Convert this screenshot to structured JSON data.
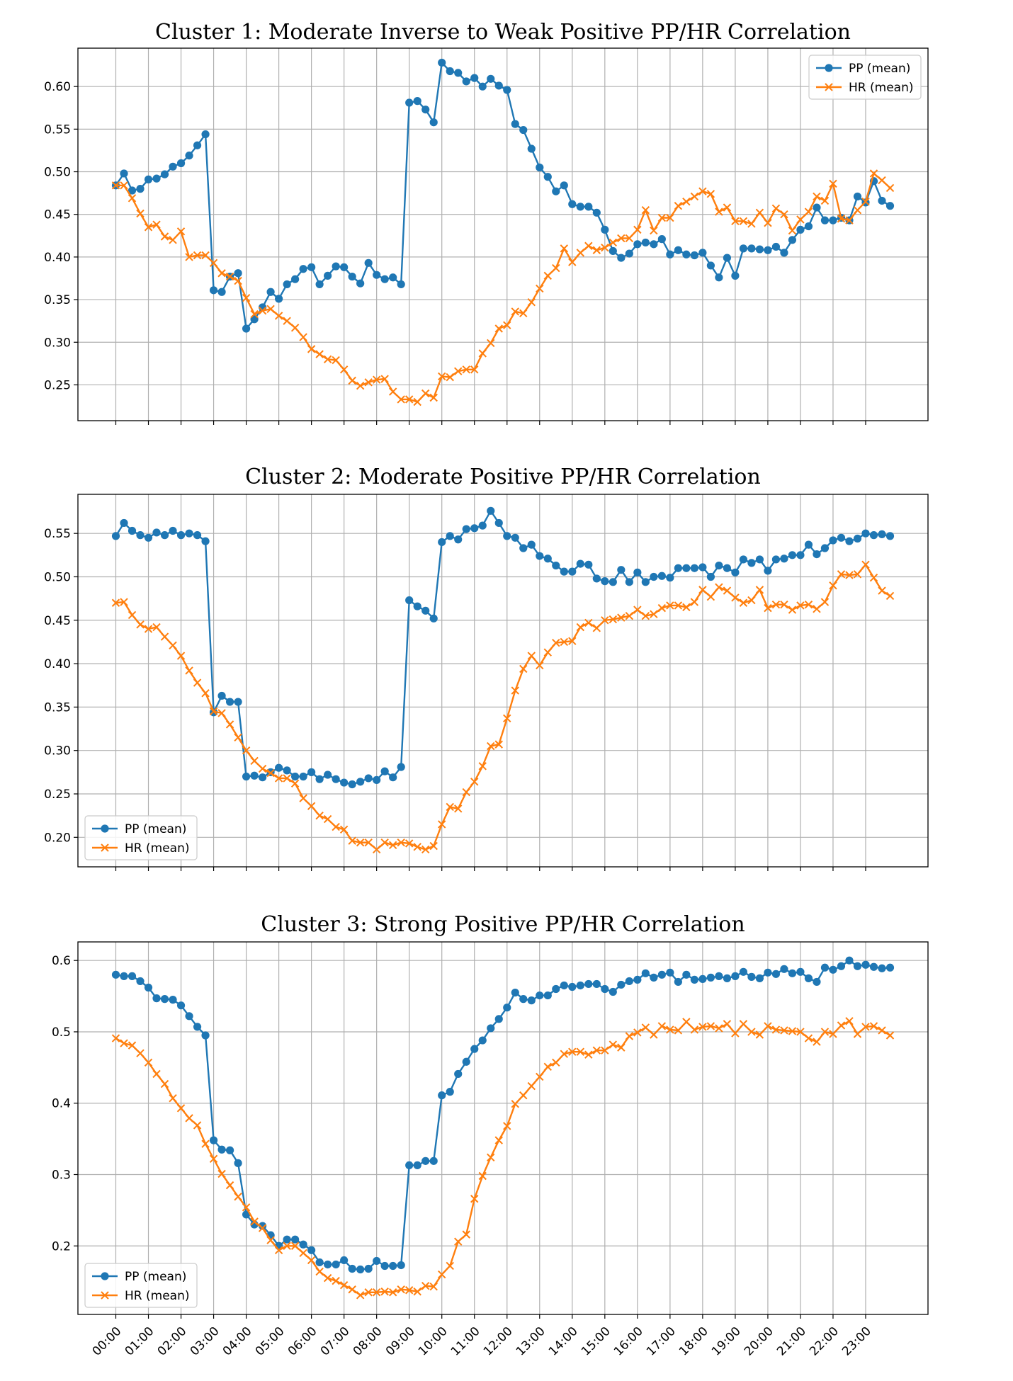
{
  "chart_data": [
    {
      "type": "line",
      "title": "Cluster 1: Moderate Inverse to Weak Positive PP/HR Correlation",
      "xlabel": "",
      "ylabel": "",
      "ylim": [
        0.208,
        0.645
      ],
      "yticks": [
        0.25,
        0.3,
        0.35,
        0.4,
        0.45,
        0.5,
        0.55,
        0.6
      ],
      "ytick_labels": [
        "0.25",
        "0.30",
        "0.35",
        "0.40",
        "0.45",
        "0.50",
        "0.55",
        "0.60"
      ],
      "legend_position": "top-right",
      "show_xtick_labels": false,
      "series": [
        {
          "name": "PP (mean)",
          "color": "#1f77b4",
          "marker": "circle",
          "values": [
            0.484,
            0.498,
            0.478,
            0.48,
            0.491,
            0.492,
            0.497,
            0.506,
            0.51,
            0.519,
            0.531,
            0.544,
            0.361,
            0.359,
            0.377,
            0.381,
            0.316,
            0.327,
            0.341,
            0.359,
            0.351,
            0.368,
            0.374,
            0.386,
            0.388,
            0.368,
            0.378,
            0.389,
            0.388,
            0.377,
            0.369,
            0.393,
            0.379,
            0.374,
            0.376,
            0.368,
            0.581,
            0.583,
            0.573,
            0.558,
            0.628,
            0.618,
            0.616,
            0.606,
            0.61,
            0.6,
            0.609,
            0.601,
            0.596,
            0.556,
            0.549,
            0.527,
            0.505,
            0.494,
            0.477,
            0.484,
            0.462,
            0.459,
            0.459,
            0.452,
            0.432,
            0.407,
            0.399,
            0.404,
            0.415,
            0.417,
            0.415,
            0.421,
            0.403,
            0.408,
            0.403,
            0.402,
            0.405,
            0.39,
            0.376,
            0.399,
            0.378,
            0.41,
            0.41,
            0.409,
            0.408,
            0.412,
            0.405,
            0.42,
            0.432,
            0.436,
            0.458,
            0.443,
            0.443,
            0.446,
            0.443,
            0.471,
            0.464,
            0.489,
            0.466,
            0.46
          ]
        },
        {
          "name": "HR (mean)",
          "color": "#ff7f0e",
          "marker": "x",
          "values": [
            0.484,
            0.484,
            0.469,
            0.451,
            0.435,
            0.438,
            0.424,
            0.42,
            0.43,
            0.4,
            0.402,
            0.402,
            0.393,
            0.381,
            0.377,
            0.372,
            0.352,
            0.333,
            0.337,
            0.339,
            0.331,
            0.325,
            0.317,
            0.306,
            0.292,
            0.286,
            0.28,
            0.279,
            0.268,
            0.255,
            0.249,
            0.253,
            0.256,
            0.257,
            0.242,
            0.233,
            0.233,
            0.23,
            0.24,
            0.235,
            0.26,
            0.259,
            0.266,
            0.268,
            0.268,
            0.287,
            0.299,
            0.316,
            0.32,
            0.336,
            0.334,
            0.347,
            0.363,
            0.378,
            0.387,
            0.41,
            0.394,
            0.405,
            0.413,
            0.408,
            0.411,
            0.417,
            0.422,
            0.422,
            0.432,
            0.455,
            0.431,
            0.446,
            0.446,
            0.46,
            0.465,
            0.471,
            0.477,
            0.474,
            0.453,
            0.458,
            0.442,
            0.442,
            0.439,
            0.452,
            0.44,
            0.457,
            0.45,
            0.431,
            0.444,
            0.453,
            0.471,
            0.466,
            0.486,
            0.445,
            0.443,
            0.455,
            0.465,
            0.498,
            0.49,
            0.481
          ]
        }
      ]
    },
    {
      "type": "line",
      "title": "Cluster 2: Moderate Positive PP/HR Correlation",
      "xlabel": "",
      "ylabel": "",
      "ylim": [
        0.166,
        0.595
      ],
      "yticks": [
        0.2,
        0.25,
        0.3,
        0.35,
        0.4,
        0.45,
        0.5,
        0.55
      ],
      "ytick_labels": [
        "0.20",
        "0.25",
        "0.30",
        "0.35",
        "0.40",
        "0.45",
        "0.50",
        "0.55"
      ],
      "legend_position": "bottom-left",
      "show_xtick_labels": false,
      "series": [
        {
          "name": "PP (mean)",
          "color": "#1f77b4",
          "marker": "circle",
          "values": [
            0.547,
            0.562,
            0.553,
            0.548,
            0.545,
            0.551,
            0.548,
            0.553,
            0.548,
            0.55,
            0.548,
            0.541,
            0.344,
            0.363,
            0.356,
            0.356,
            0.27,
            0.271,
            0.269,
            0.275,
            0.28,
            0.277,
            0.27,
            0.27,
            0.275,
            0.267,
            0.272,
            0.267,
            0.263,
            0.261,
            0.264,
            0.268,
            0.266,
            0.276,
            0.269,
            0.281,
            0.473,
            0.466,
            0.461,
            0.452,
            0.54,
            0.547,
            0.543,
            0.555,
            0.556,
            0.559,
            0.576,
            0.562,
            0.547,
            0.545,
            0.533,
            0.537,
            0.524,
            0.521,
            0.513,
            0.506,
            0.506,
            0.515,
            0.514,
            0.498,
            0.495,
            0.494,
            0.508,
            0.494,
            0.505,
            0.494,
            0.5,
            0.501,
            0.499,
            0.51,
            0.51,
            0.51,
            0.511,
            0.5,
            0.513,
            0.51,
            0.505,
            0.52,
            0.516,
            0.52,
            0.507,
            0.52,
            0.521,
            0.525,
            0.525,
            0.537,
            0.526,
            0.533,
            0.542,
            0.545,
            0.541,
            0.544,
            0.55,
            0.548,
            0.549,
            0.547
          ]
        },
        {
          "name": "HR (mean)",
          "color": "#ff7f0e",
          "marker": "x",
          "values": [
            0.47,
            0.471,
            0.456,
            0.445,
            0.44,
            0.442,
            0.431,
            0.421,
            0.409,
            0.392,
            0.378,
            0.366,
            0.345,
            0.343,
            0.33,
            0.315,
            0.3,
            0.288,
            0.279,
            0.274,
            0.268,
            0.268,
            0.262,
            0.245,
            0.236,
            0.225,
            0.221,
            0.212,
            0.209,
            0.196,
            0.194,
            0.194,
            0.186,
            0.194,
            0.191,
            0.194,
            0.193,
            0.189,
            0.186,
            0.19,
            0.215,
            0.235,
            0.233,
            0.252,
            0.264,
            0.282,
            0.305,
            0.307,
            0.337,
            0.369,
            0.394,
            0.409,
            0.398,
            0.413,
            0.424,
            0.425,
            0.426,
            0.442,
            0.447,
            0.441,
            0.45,
            0.451,
            0.453,
            0.455,
            0.462,
            0.455,
            0.457,
            0.464,
            0.467,
            0.467,
            0.465,
            0.471,
            0.485,
            0.477,
            0.488,
            0.484,
            0.476,
            0.47,
            0.473,
            0.485,
            0.464,
            0.468,
            0.468,
            0.462,
            0.467,
            0.468,
            0.463,
            0.471,
            0.49,
            0.503,
            0.502,
            0.503,
            0.514,
            0.499,
            0.484,
            0.478
          ]
        }
      ]
    },
    {
      "type": "line",
      "title": "Cluster 3: Strong Positive PP/HR Correlation",
      "xlabel": "",
      "ylabel": "",
      "ylim": [
        0.104,
        0.626
      ],
      "yticks": [
        0.2,
        0.3,
        0.4,
        0.5,
        0.6
      ],
      "ytick_labels": [
        "0.2",
        "0.3",
        "0.4",
        "0.5",
        "0.6"
      ],
      "legend_position": "bottom-left",
      "show_xtick_labels": true,
      "series": [
        {
          "name": "PP (mean)",
          "color": "#1f77b4",
          "marker": "circle",
          "values": [
            0.58,
            0.578,
            0.578,
            0.571,
            0.562,
            0.547,
            0.546,
            0.545,
            0.537,
            0.522,
            0.507,
            0.495,
            0.348,
            0.335,
            0.334,
            0.316,
            0.244,
            0.23,
            0.228,
            0.215,
            0.2,
            0.209,
            0.209,
            0.202,
            0.194,
            0.177,
            0.174,
            0.174,
            0.18,
            0.168,
            0.167,
            0.168,
            0.179,
            0.172,
            0.172,
            0.173,
            0.313,
            0.313,
            0.319,
            0.319,
            0.411,
            0.416,
            0.441,
            0.458,
            0.476,
            0.488,
            0.505,
            0.518,
            0.534,
            0.555,
            0.546,
            0.544,
            0.551,
            0.551,
            0.56,
            0.565,
            0.563,
            0.565,
            0.567,
            0.567,
            0.56,
            0.556,
            0.566,
            0.571,
            0.573,
            0.582,
            0.576,
            0.58,
            0.583,
            0.57,
            0.58,
            0.573,
            0.574,
            0.576,
            0.578,
            0.575,
            0.578,
            0.584,
            0.577,
            0.575,
            0.583,
            0.581,
            0.588,
            0.582,
            0.584,
            0.575,
            0.57,
            0.59,
            0.587,
            0.592,
            0.6,
            0.592,
            0.594,
            0.591,
            0.589,
            0.59
          ]
        },
        {
          "name": "HR (mean)",
          "color": "#ff7f0e",
          "marker": "x",
          "values": [
            0.491,
            0.484,
            0.481,
            0.47,
            0.457,
            0.441,
            0.427,
            0.407,
            0.393,
            0.379,
            0.369,
            0.343,
            0.322,
            0.301,
            0.285,
            0.269,
            0.254,
            0.234,
            0.225,
            0.208,
            0.194,
            0.2,
            0.2,
            0.19,
            0.18,
            0.164,
            0.155,
            0.151,
            0.145,
            0.139,
            0.131,
            0.135,
            0.135,
            0.136,
            0.135,
            0.139,
            0.138,
            0.136,
            0.144,
            0.143,
            0.16,
            0.172,
            0.206,
            0.216,
            0.266,
            0.298,
            0.324,
            0.348,
            0.368,
            0.399,
            0.411,
            0.424,
            0.437,
            0.451,
            0.457,
            0.469,
            0.472,
            0.472,
            0.468,
            0.474,
            0.474,
            0.482,
            0.478,
            0.494,
            0.499,
            0.506,
            0.496,
            0.508,
            0.503,
            0.502,
            0.514,
            0.503,
            0.507,
            0.508,
            0.505,
            0.511,
            0.498,
            0.511,
            0.5,
            0.496,
            0.508,
            0.503,
            0.502,
            0.501,
            0.5,
            0.491,
            0.486,
            0.5,
            0.497,
            0.509,
            0.515,
            0.497,
            0.507,
            0.508,
            0.502,
            0.495
          ]
        }
      ]
    }
  ],
  "xticks": {
    "positions": [
      0,
      4,
      8,
      12,
      16,
      20,
      24,
      28,
      32,
      36,
      40,
      44,
      48,
      52,
      56,
      60,
      64,
      68,
      72,
      76,
      80,
      84,
      88,
      92
    ],
    "labels": [
      "00:00",
      "01:00",
      "02:00",
      "03:00",
      "04:00",
      "05:00",
      "06:00",
      "07:00",
      "08:00",
      "09:00",
      "10:00",
      "11:00",
      "12:00",
      "13:00",
      "14:00",
      "15:00",
      "16:00",
      "17:00",
      "18:00",
      "19:00",
      "20:00",
      "21:00",
      "22:00",
      "23:00"
    ],
    "xlim": [
      -4.65,
      99.65
    ]
  }
}
